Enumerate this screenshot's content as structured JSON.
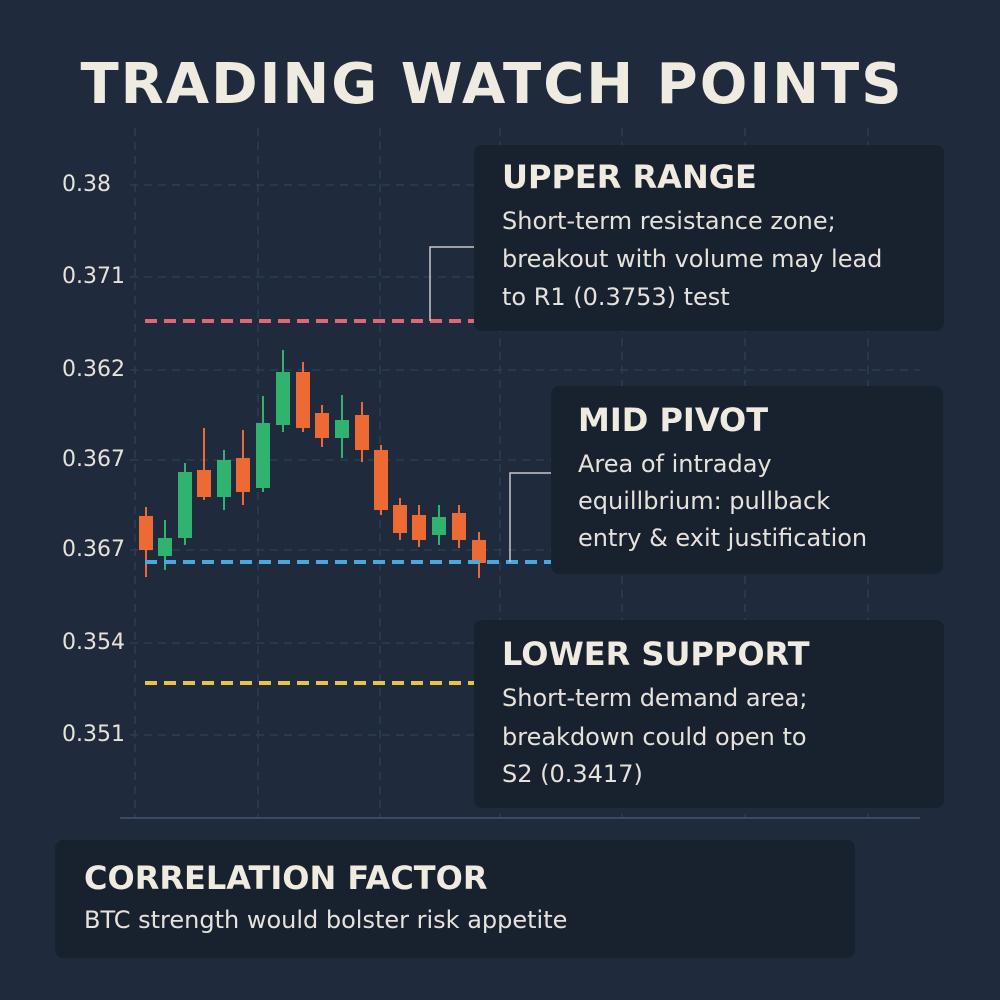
{
  "title": "TRADING WATCH POINTS",
  "axis_labels": [
    "0.38",
    "0.371",
    "0.362",
    "0.367",
    "0.367",
    "0.354",
    "0.351"
  ],
  "panels": [
    {
      "heading": "UPPER RANGE",
      "lines": [
        "Short-term resistance zone;",
        "breakout with volume may lead",
        "to R1 (0.3753) test"
      ]
    },
    {
      "heading": "MID PIVOT",
      "lines": [
        "Area of intraday",
        "equillbrium: pullback",
        "entry & exit justification"
      ]
    },
    {
      "heading": "LOWER SUPPORT",
      "lines": [
        "Short-term demand area;",
        "breakdown could open to",
        "S2 (0.3417)"
      ]
    }
  ],
  "footer": {
    "heading": "CORRELATION FACTOR",
    "text": "BTC strength would bolster risk appetite"
  }
}
